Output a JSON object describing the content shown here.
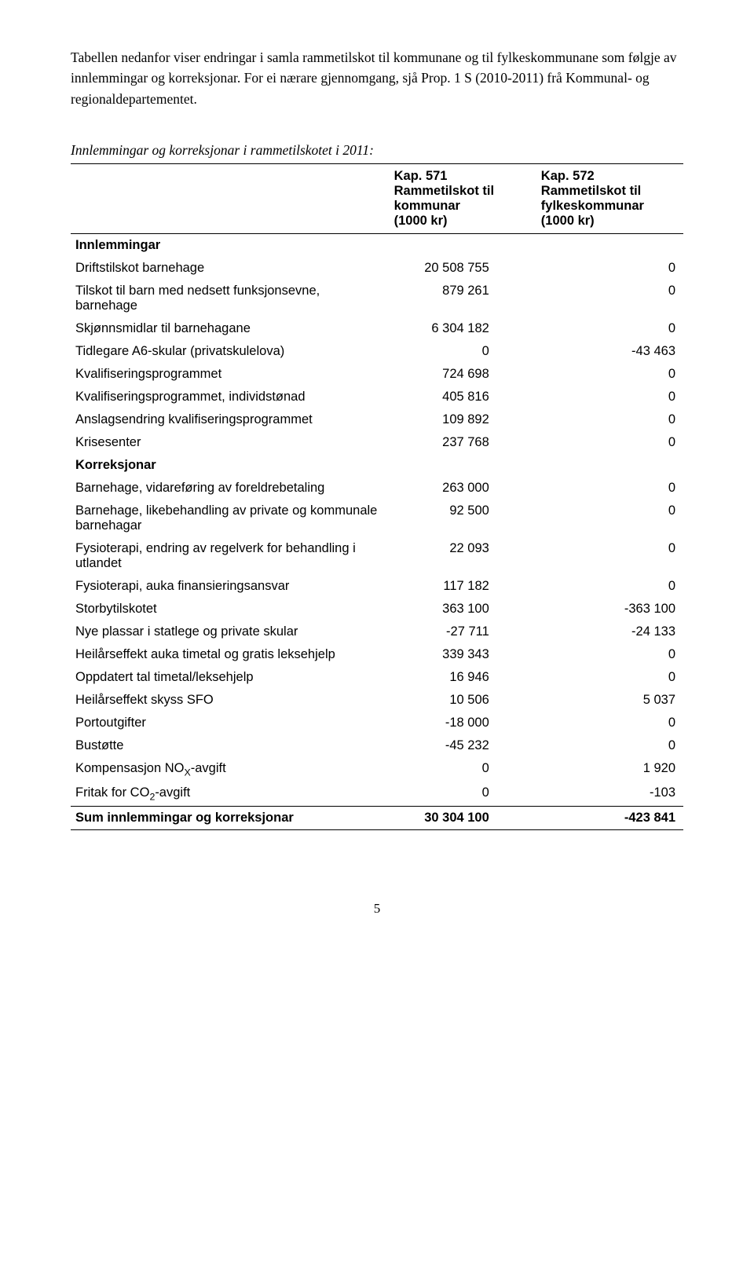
{
  "intro": "Tabellen nedanfor viser endringar i samla rammetilskot til kommunane og til fylkeskommunane som følgje av innlemmingar og korreksjonar. For ei nærare gjennomgang, sjå Prop. 1 S (2010-2011) frå Kommunal- og regionaldepartementet.",
  "table": {
    "title": "Innlemmingar og korreksjonar i rammetilskotet i 2011:",
    "columns": [
      "",
      "Kap. 571 Rammetilskot til kommunar (1000 kr)",
      "Kap. 572 Rammetilskot til fylkeskommunar (1000 kr)"
    ],
    "col1_lines": [
      "Kap. 571",
      "Rammetilskot til",
      "kommunar",
      "(1000 kr)"
    ],
    "col2_lines": [
      "Kap. 572",
      "Rammetilskot til",
      "fylkeskommunar",
      "(1000 kr)"
    ],
    "sections": {
      "innlemmingar_label": "Innlemmingar",
      "korreksjonar_label": "Korreksjonar"
    },
    "rows": [
      {
        "label": "Driftstilskot barnehage",
        "c1": "20 508 755",
        "c2": "0"
      },
      {
        "label": "Tilskot til barn med nedsett funksjonsevne, barnehage",
        "c1": "879 261",
        "c2": "0"
      },
      {
        "label": "Skjønnsmidlar til barnehagane",
        "c1": "6 304 182",
        "c2": "0"
      },
      {
        "label": "Tidlegare A6-skular (privatskulelova)",
        "c1": "0",
        "c2": "-43 463"
      },
      {
        "label": "Kvalifiseringsprogrammet",
        "c1": "724 698",
        "c2": "0"
      },
      {
        "label": "Kvalifiseringsprogrammet, individstønad",
        "c1": "405 816",
        "c2": "0"
      },
      {
        "label": "Anslagsendring kvalifiseringsprogrammet",
        "c1": "109 892",
        "c2": "0"
      },
      {
        "label": "Krisesenter",
        "c1": "237 768",
        "c2": "0"
      },
      {
        "label": "Barnehage, vidareføring av foreldrebetaling",
        "c1": "263 000",
        "c2": "0"
      },
      {
        "label": "Barnehage, likebehandling av private og kommunale barnehagar",
        "c1": "92 500",
        "c2": "0"
      },
      {
        "label": "Fysioterapi, endring av regelverk for behandling i utlandet",
        "c1": "22 093",
        "c2": "0"
      },
      {
        "label": "Fysioterapi, auka finansieringsansvar",
        "c1": "117 182",
        "c2": "0"
      },
      {
        "label": "Storbytilskotet",
        "c1": "363 100",
        "c2": "-363 100"
      },
      {
        "label": "Nye plassar i statlege og private skular",
        "c1": "-27 711",
        "c2": "-24 133"
      },
      {
        "label": "Heilårseffekt auka timetal og gratis leksehjelp",
        "c1": "339 343",
        "c2": "0"
      },
      {
        "label": "Oppdatert tal timetal/leksehjelp",
        "c1": "16 946",
        "c2": "0"
      },
      {
        "label": "Heilårseffekt skyss SFO",
        "c1": "10 506",
        "c2": "5 037"
      },
      {
        "label": "Portoutgifter",
        "c1": "-18 000",
        "c2": "0"
      },
      {
        "label": "Bustøtte",
        "c1": "-45 232",
        "c2": "0"
      },
      {
        "label_html": "Kompensasjon NO<span class=\"sub\">X</span>-avgift",
        "label": "Kompensasjon NOX-avgift",
        "c1": "0",
        "c2": "1 920"
      },
      {
        "label_html": "Fritak for CO<span class=\"sub\">2</span>-avgift",
        "label": "Fritak for CO2-avgift",
        "c1": "0",
        "c2": "-103"
      }
    ],
    "sum": {
      "label": "Sum innlemmingar og korreksjonar",
      "c1": "30 304 100",
      "c2": "-423 841"
    }
  },
  "page_number": "5"
}
